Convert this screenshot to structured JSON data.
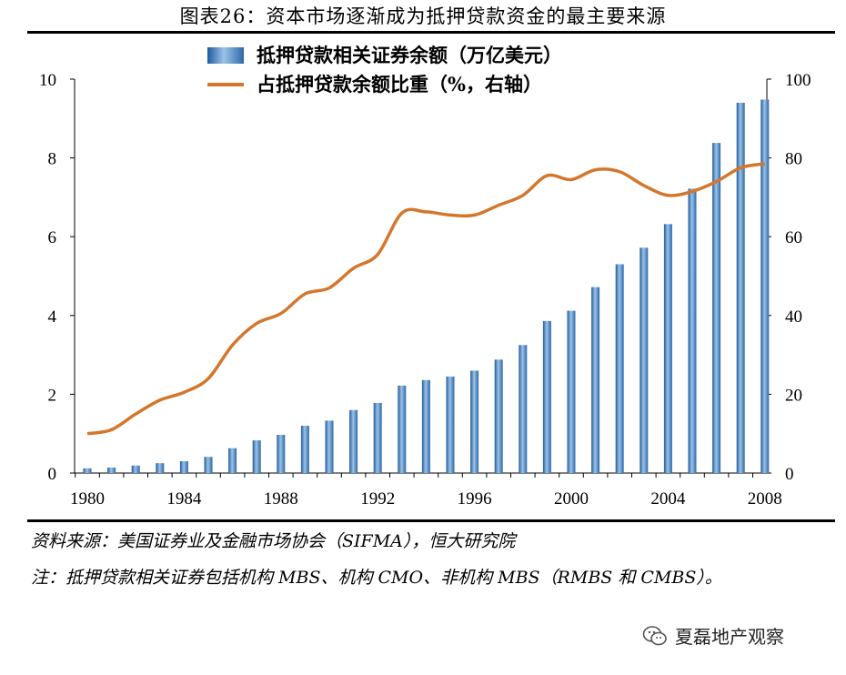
{
  "title": "图表26：资本市场逐渐成为抵押贷款资金的最主要来源",
  "source": "资料来源：美国证券业及金融市场协会（SIFMA），恒大研究院",
  "footnote": "注：抵押贷款相关证券包括机构 MBS、机构 CMO、非机构 MBS（RMBS 和 CMBS）。",
  "watermark": {
    "text": "夏磊地产观察",
    "icon": "wechat-icon"
  },
  "colors": {
    "bar": "#3f78b3",
    "bar_light": "#9cc3e8",
    "line": "#d4772c"
  },
  "chart_data": {
    "type": "bar+line",
    "legend": [
      {
        "label": "抵押贷款相关证券余额（万亿美元）",
        "kind": "bar"
      },
      {
        "label": "占抵押贷款余额比重（%，右轴）",
        "kind": "line"
      }
    ],
    "left_axis": {
      "min": 0,
      "max": 10,
      "ticks": [
        0,
        2,
        4,
        6,
        8,
        10
      ]
    },
    "right_axis": {
      "min": 0,
      "max": 100,
      "ticks": [
        0,
        20,
        40,
        60,
        80,
        100
      ]
    },
    "x_ticks": [
      1980,
      1984,
      1988,
      1992,
      1996,
      2000,
      2004,
      2008
    ],
    "bars": {
      "name": "抵押贷款相关证券余额（万亿美元）",
      "years": [
        1980,
        1981,
        1982,
        1983,
        1984,
        1985,
        1986,
        1987,
        1988,
        1989,
        1990,
        1991,
        1992,
        1993,
        1994,
        1995,
        1996,
        1997,
        1998,
        1999,
        2000,
        2001,
        2002,
        2003,
        2004,
        2005,
        2006,
        2007,
        2008
      ],
      "values": [
        0.12,
        0.14,
        0.19,
        0.25,
        0.3,
        0.41,
        0.63,
        0.83,
        0.97,
        1.2,
        1.33,
        1.6,
        1.78,
        2.22,
        2.36,
        2.45,
        2.6,
        2.88,
        3.25,
        3.86,
        4.12,
        4.72,
        5.3,
        5.72,
        6.32,
        7.22,
        8.38,
        9.4,
        9.48
      ]
    },
    "line": {
      "name": "占抵押贷款余额比重（%，右轴）",
      "x": [
        1980,
        1981,
        1982,
        1983,
        1984,
        1985,
        1986,
        1987,
        1988,
        1989,
        1990,
        1991,
        1992,
        1993,
        1994,
        1995,
        1996,
        1997,
        1998,
        1999,
        2000,
        2001,
        2002,
        2003,
        2004,
        2005,
        2006,
        2007,
        2008
      ],
      "y": [
        10,
        11,
        15,
        18.5,
        20.5,
        24,
        32.5,
        38,
        40.5,
        45.5,
        47,
        52,
        55.5,
        66,
        66.3,
        65.5,
        65.5,
        68,
        70.5,
        75.5,
        74.5,
        77,
        76.5,
        73,
        70.5,
        71.5,
        74,
        77.5,
        78.5
      ]
    }
  }
}
